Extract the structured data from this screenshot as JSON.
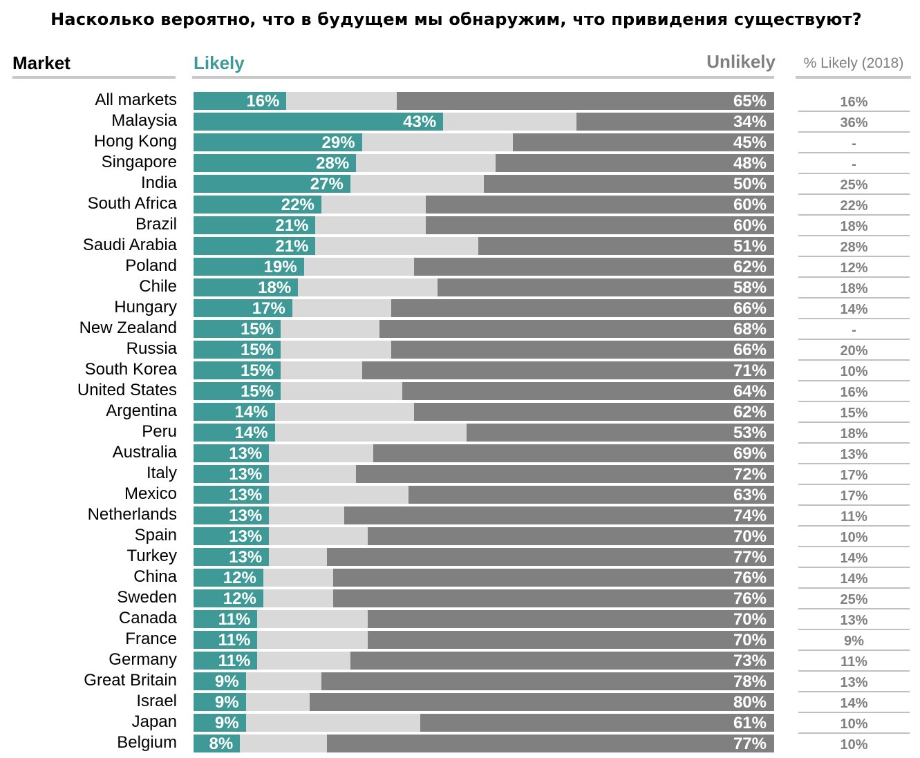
{
  "chart_data": {
    "type": "bar",
    "title": "Насколько вероятно, что в будущем мы обнаружим, что привидения существуют?",
    "headers": {
      "market": "Market",
      "likely": "Likely",
      "unlikely": "Unlikely",
      "previous": "% Likely (2018)"
    },
    "stacked": true,
    "xlim": [
      0,
      100
    ],
    "colors": {
      "likely": "#3f9a97",
      "neutral": "#d9d9d9",
      "unlikely": "#808080"
    },
    "categories": [
      "All markets",
      "Malaysia",
      "Hong Kong",
      "Singapore",
      "India",
      "South Africa",
      "Brazil",
      "Saudi Arabia",
      "Poland",
      "Chile",
      "Hungary",
      "New Zealand",
      "Russia",
      "South Korea",
      "United States",
      "Argentina",
      "Peru",
      "Australia",
      "Italy",
      "Mexico",
      "Netherlands",
      "Spain",
      "Turkey",
      "China",
      "Sweden",
      "Canada",
      "France",
      "Germany",
      "Great Britain",
      "Israel",
      "Japan",
      "Belgium"
    ],
    "series": [
      {
        "name": "Likely",
        "values": [
          16,
          43,
          29,
          28,
          27,
          22,
          21,
          21,
          19,
          18,
          17,
          15,
          15,
          15,
          15,
          14,
          14,
          13,
          13,
          13,
          13,
          13,
          13,
          12,
          12,
          11,
          11,
          11,
          9,
          9,
          9,
          8
        ]
      },
      {
        "name": "Unlikely",
        "values": [
          65,
          34,
          45,
          48,
          50,
          60,
          60,
          51,
          62,
          58,
          66,
          68,
          66,
          71,
          64,
          62,
          53,
          69,
          72,
          63,
          74,
          70,
          77,
          76,
          76,
          70,
          70,
          73,
          78,
          80,
          61,
          77
        ]
      }
    ],
    "labels_likely": [
      "16%",
      "43%",
      "29%",
      "28%",
      "27%",
      "22%",
      "21%",
      "21%",
      "19%",
      "18%",
      "17%",
      "15%",
      "15%",
      "15%",
      "15%",
      "14%",
      "14%",
      "13%",
      "13%",
      "13%",
      "13%",
      "13%",
      "13%",
      "12%",
      "12%",
      "11%",
      "11%",
      "11%",
      "9%",
      "9%",
      "9%",
      "8%"
    ],
    "labels_unlikely": [
      "65%",
      "34%",
      "45%",
      "48%",
      "50%",
      "60%",
      "60%",
      "51%",
      "62%",
      "58%",
      "66%",
      "68%",
      "66%",
      "71%",
      "64%",
      "62%",
      "53%",
      "69%",
      "72%",
      "63%",
      "74%",
      "70%",
      "77%",
      "76%",
      "76%",
      "70%",
      "70%",
      "73%",
      "78%",
      "80%",
      "61%",
      "77%"
    ],
    "likely_2018": [
      "16%",
      "36%",
      "-",
      "-",
      "25%",
      "22%",
      "18%",
      "28%",
      "12%",
      "18%",
      "14%",
      "-",
      "20%",
      "10%",
      "16%",
      "15%",
      "18%",
      "13%",
      "17%",
      "17%",
      "11%",
      "10%",
      "14%",
      "14%",
      "25%",
      "13%",
      "9%",
      "11%",
      "13%",
      "14%",
      "10%",
      "10%"
    ]
  }
}
